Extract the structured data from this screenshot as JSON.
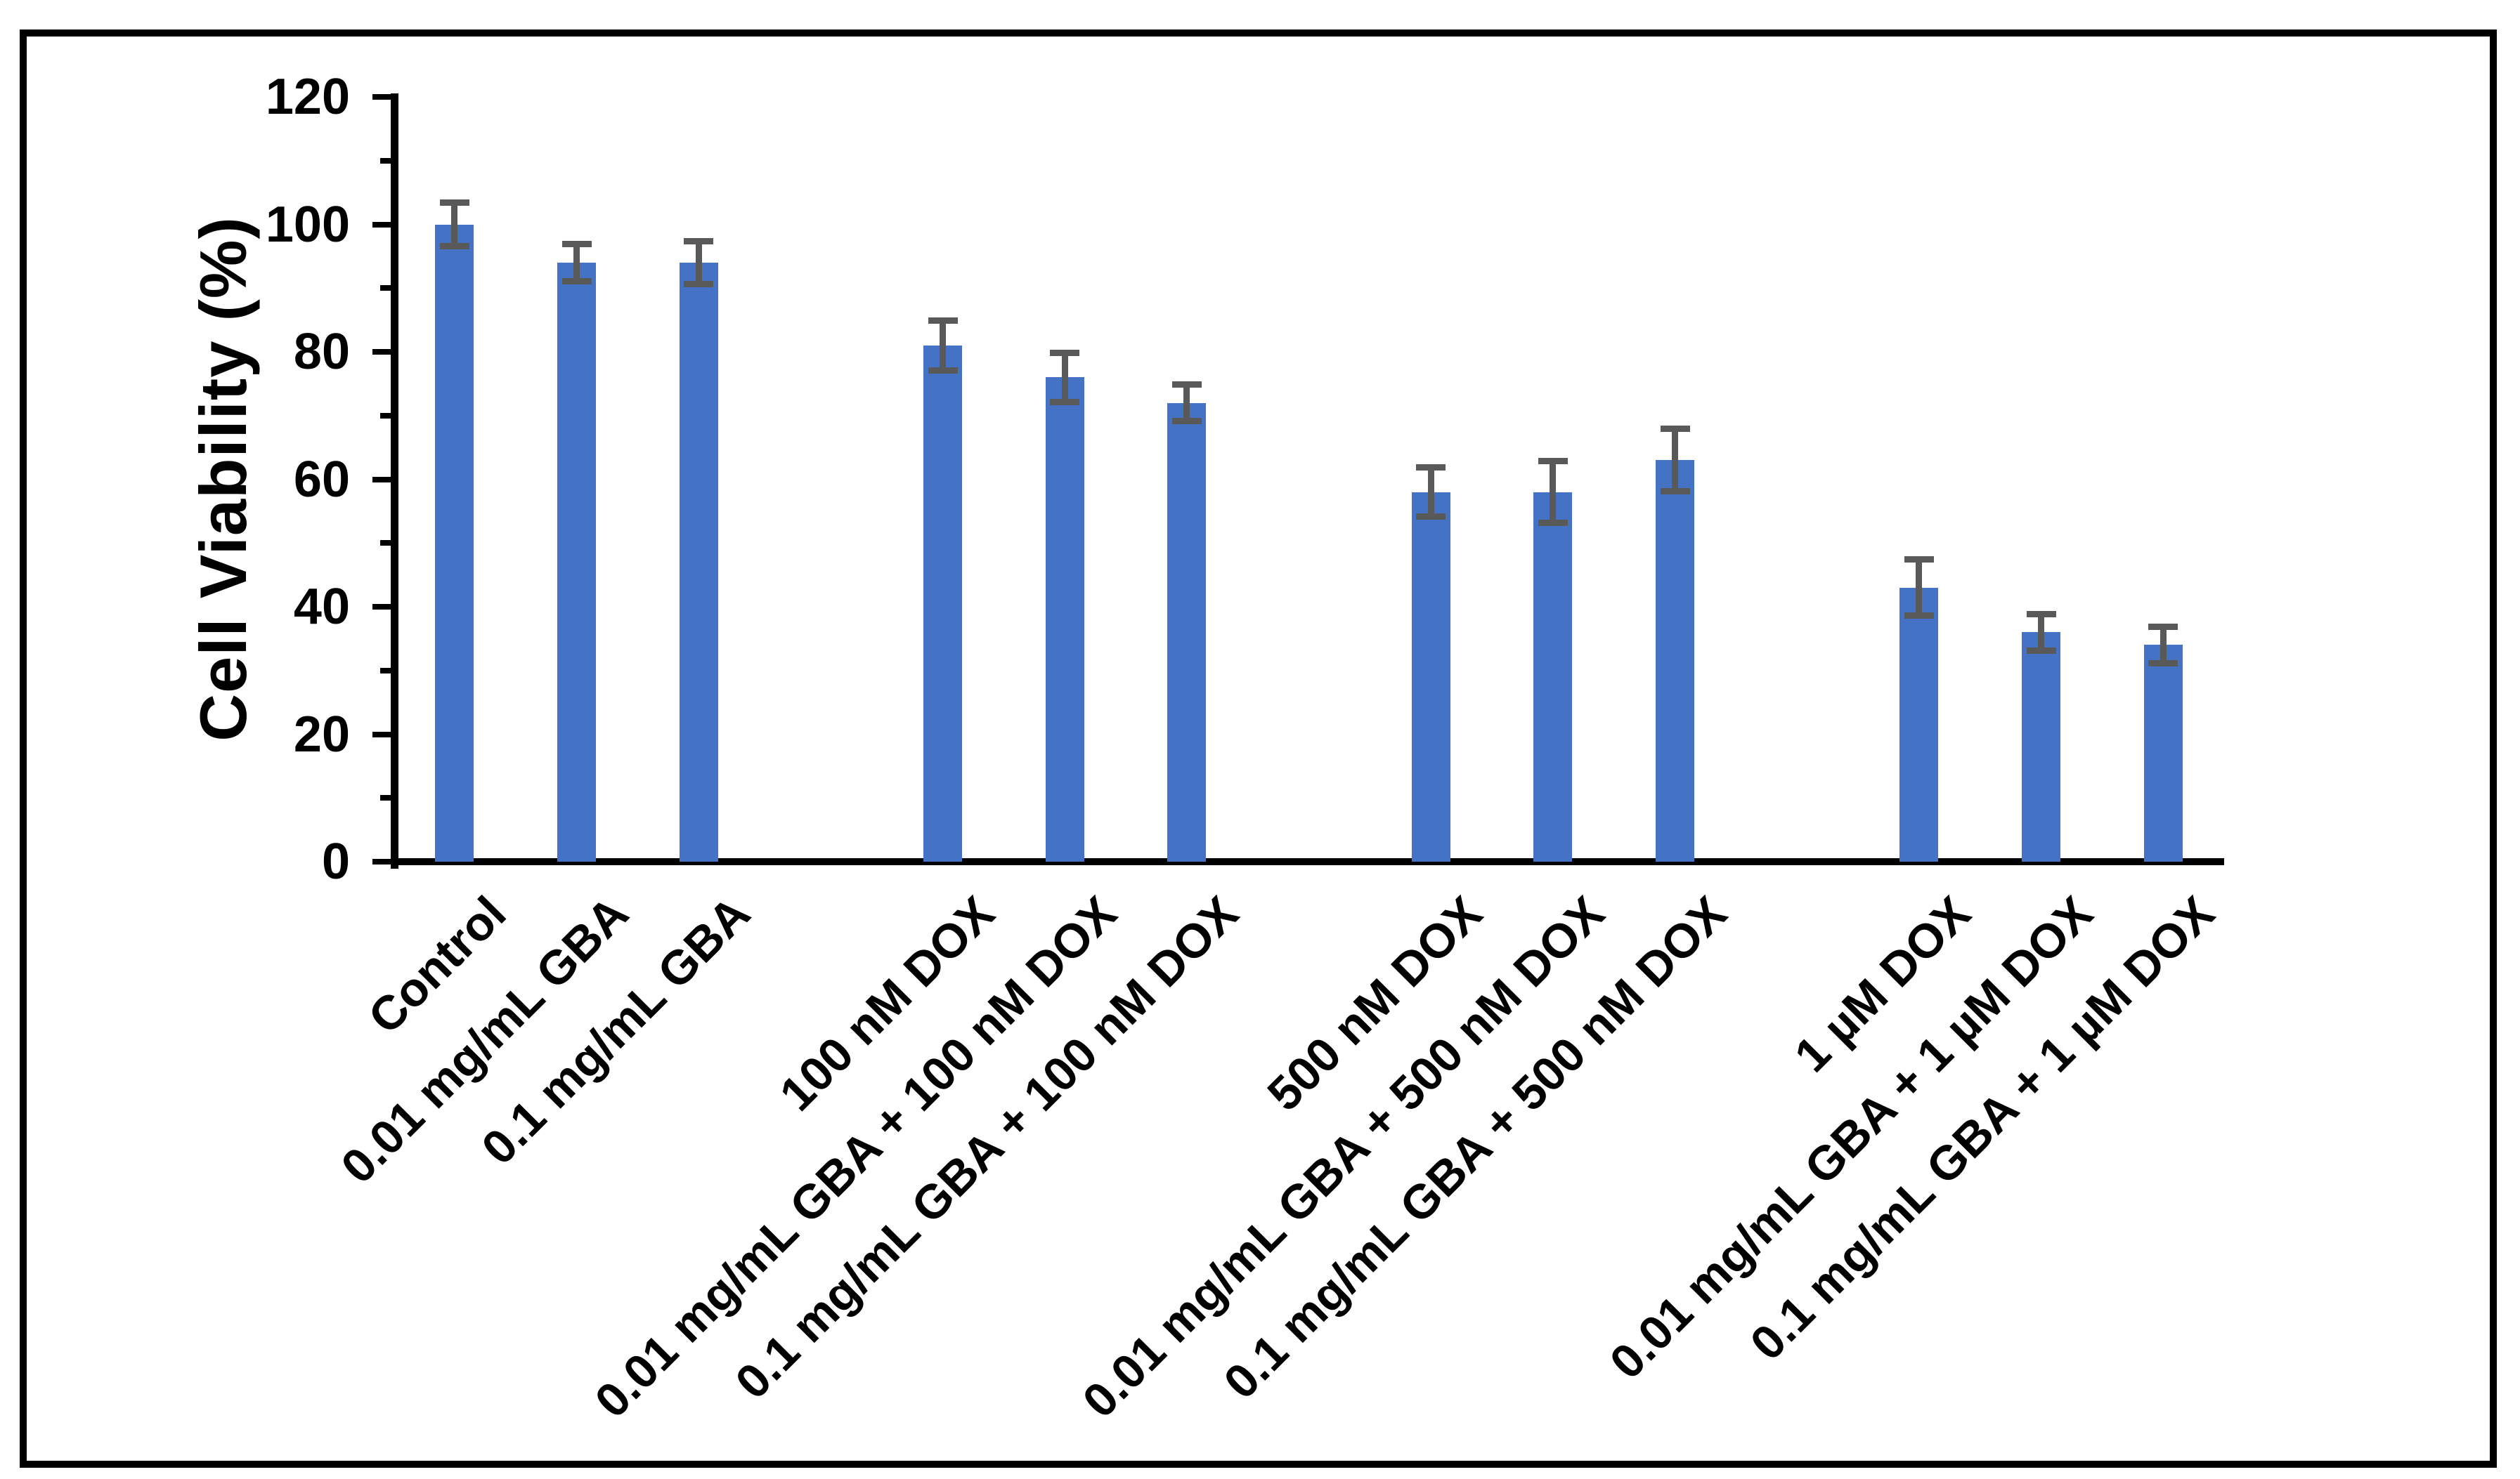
{
  "figure": {
    "background": "#FFFFFF",
    "border_color": "#000000",
    "text_color": "#000000"
  },
  "chart_data": {
    "type": "bar",
    "title": "",
    "xlabel": "",
    "ylabel": "Cell Viability (%)",
    "ylim": [
      0,
      120
    ],
    "yticks": [
      0,
      20,
      40,
      60,
      80,
      100,
      120
    ],
    "ytick_step": 20,
    "ytick_minor_step": 10,
    "grid": false,
    "legend": false,
    "bar_color": "#4472C4",
    "error_bar_color": "#595959",
    "group_size": 3,
    "gap_slots_between_groups": 1,
    "categories": [
      "Control",
      "0.01 mg/mL GBA",
      "0.1 mg/mL GBA",
      "100 nM DOX",
      "0.01 mg/mL GBA + 100 nM DOX",
      "0.1 mg/mL GBA + 100 nM DOX",
      "500 nM DOX",
      "0.01 mg/mL GBA + 500 nM DOX",
      "0.1 mg/mL GBA + 500 nM DOX",
      "1 µM DOX",
      "0.01 mg/mL GBA + 1 µM DOX",
      "0.1 mg/mL GBA + 1 µM DOX"
    ],
    "values": [
      100,
      94,
      94,
      81,
      76,
      72,
      58,
      58,
      63,
      43,
      36,
      34
    ],
    "errors": [
      3,
      2.5,
      3,
      3.5,
      3.5,
      2.5,
      3.5,
      4.5,
      4.5,
      4,
      2.5,
      2.5
    ]
  }
}
